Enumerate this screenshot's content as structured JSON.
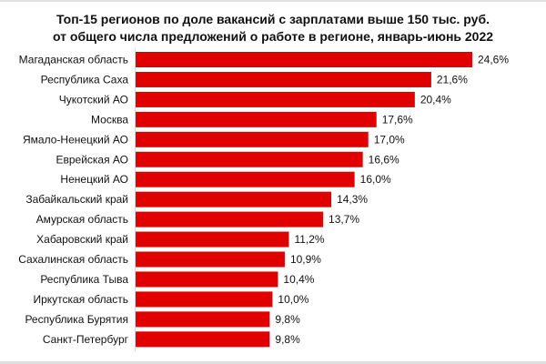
{
  "chart_data": {
    "type": "bar",
    "orientation": "horizontal",
    "title_line1": "Топ-15 регионов по доле вакансий с зарплатами выше 150 тыс. руб.",
    "title_line2": "от общего числа предложений о работе в регионе, январь-июнь 2022",
    "categories": [
      "Магаданская область",
      "Республика Саха",
      "Чукотский АО",
      "Москва",
      "Ямало-Ненецкий АО",
      "Еврейская АО",
      "Ненецкий АО",
      "Забайкальский край",
      "Амурская область",
      "Хабаровский край",
      "Сахалинская область",
      "Республика Тыва",
      "Иркутская область",
      "Республика Бурятия",
      "Санкт-Петербург"
    ],
    "values": [
      24.6,
      21.6,
      20.4,
      17.6,
      17.0,
      16.6,
      16.0,
      14.3,
      13.7,
      11.2,
      10.9,
      10.4,
      10.0,
      9.8,
      9.8
    ],
    "labels": [
      "24,6%",
      "21,6%",
      "20,4%",
      "17,6%",
      "17,0%",
      "16,6%",
      "16,0%",
      "14,3%",
      "13,7%",
      "11,2%",
      "10,9%",
      "10,4%",
      "10,0%",
      "9,8%",
      "9,8%"
    ],
    "unit": "%",
    "xlim": [
      0,
      24.6
    ],
    "grid": false,
    "legend": "none",
    "bar_color": "#e00000"
  }
}
